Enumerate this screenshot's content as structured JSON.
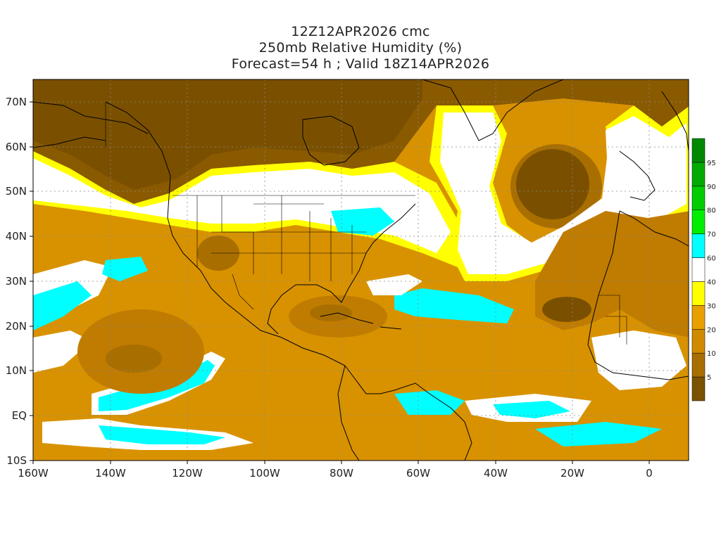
{
  "header": {
    "line1": "12Z12APR2026 cmc",
    "line2": "250mb Relative Humidity (%)",
    "line3": "Forecast=54 h ; Valid 18Z14APR2026"
  },
  "axes": {
    "lat_labels": [
      "70N",
      "60N",
      "50N",
      "40N",
      "30N",
      "20N",
      "10N",
      "EQ",
      "10S"
    ],
    "lat_values": [
      70,
      60,
      50,
      40,
      30,
      20,
      10,
      0,
      -10
    ],
    "lon_labels": [
      "160W",
      "140W",
      "120W",
      "100W",
      "80W",
      "60W",
      "40W",
      "20W",
      "0"
    ],
    "lon_values": [
      -160,
      -140,
      -120,
      -100,
      -80,
      -60,
      -40,
      -20,
      0
    ],
    "lon_range": [
      -160,
      10
    ],
    "lat_range": [
      -10,
      75
    ],
    "grid": true
  },
  "colorbar": {
    "labels": [
      "5",
      "10",
      "20",
      "30",
      "40",
      "60",
      "70",
      "80",
      "90",
      "95"
    ],
    "colors": [
      "#7a5200",
      "#a86e00",
      "#d08a00",
      "#e8a000",
      "#ffff00",
      "#ffffff",
      "#00ffff",
      "#00ee00",
      "#00cc00",
      "#00aa00",
      "#008800"
    ]
  },
  "features": {
    "dry_core_colors": [
      "#7a5200",
      "#a86e00",
      "#d08a00",
      "#e8a000"
    ],
    "moist_colors": [
      "#ffff00",
      "#ffffff",
      "#00ffff"
    ]
  }
}
